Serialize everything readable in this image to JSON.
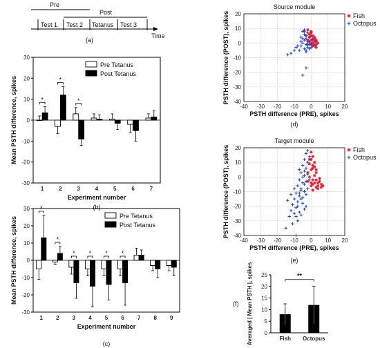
{
  "timeline": {
    "pre_label": "Pre",
    "post_label": "Post",
    "segments": [
      "Test 1",
      "Test 2",
      "Tetanus",
      "Test 3"
    ],
    "time_label": "Time",
    "caption": "(a)"
  },
  "chart_data": [
    {
      "id": "b",
      "type": "bar",
      "caption": "(b)",
      "xlabel": "Experiment number",
      "ylabel": "Mean PSTH difference, spikes",
      "ylim": [
        -30,
        30
      ],
      "yticks": [
        -30,
        -20,
        -10,
        0,
        10,
        20,
        30
      ],
      "categories": [
        "1",
        "2",
        "3",
        "4",
        "5",
        "6",
        "7"
      ],
      "series": [
        {
          "name": "Pre Tetanus",
          "color": "#ffffff",
          "values": [
            0,
            -3,
            3,
            1,
            0.5,
            -2,
            1
          ],
          "errors": [
            2,
            3.5,
            3,
            2,
            2.5,
            4,
            2
          ]
        },
        {
          "name": "Post Tetanus",
          "color": "#000000",
          "values": [
            3.5,
            12,
            -9,
            0.5,
            -1.5,
            -5,
            1.5
          ],
          "errors": [
            3,
            4,
            3,
            2,
            3,
            5,
            3
          ]
        }
      ],
      "significant": [
        "1",
        "2",
        "3"
      ],
      "legend": "top-right"
    },
    {
      "id": "c",
      "type": "bar",
      "caption": "(c)",
      "xlabel": "Experiment number",
      "ylabel": "Mean PSTH difference, spikes",
      "ylim": [
        -30,
        30
      ],
      "yticks": [
        -30,
        -20,
        -10,
        0,
        10,
        20,
        30
      ],
      "categories": [
        "1",
        "2",
        "3",
        "4",
        "5",
        "6",
        "7",
        "8",
        "9"
      ],
      "series": [
        {
          "name": "Pre Tetanus",
          "color": "#ffffff",
          "values": [
            -5,
            -1,
            -4,
            -5,
            -5,
            -5,
            3,
            -3,
            -3
          ],
          "errors": [
            6,
            1.5,
            4,
            4,
            4,
            4,
            4,
            3,
            3
          ]
        },
        {
          "name": "Post Tetanus",
          "color": "#000000",
          "values": [
            13,
            4,
            -13,
            -15,
            -14,
            -13,
            3,
            -5,
            -4
          ],
          "errors": [
            13,
            4,
            9,
            12,
            9,
            13,
            3,
            5,
            5
          ]
        }
      ],
      "significant": [
        "1",
        "2",
        "3",
        "4",
        "5",
        "6"
      ],
      "legend": "top-right"
    },
    {
      "id": "d",
      "type": "scatter",
      "title": "Source module",
      "caption": "(d)",
      "xlabel": "PSTH difference (PRE), spikes",
      "ylabel": "PSTH difference (POST), spikes",
      "xlim": [
        -40,
        20
      ],
      "ylim": [
        -40,
        20
      ],
      "ticks": [
        -40,
        -30,
        -20,
        -10,
        0,
        10,
        20
      ],
      "grid": true,
      "legend": "top-right",
      "series": [
        {
          "name": "Fish",
          "color": "#e8192c",
          "marker": "star",
          "points": [
            [
              -2,
              9
            ],
            [
              0,
              7
            ],
            [
              1,
              5
            ],
            [
              2,
              3
            ],
            [
              3,
              1
            ],
            [
              -1,
              4
            ],
            [
              0,
              2
            ],
            [
              1,
              0
            ],
            [
              2,
              -1
            ],
            [
              -1,
              6
            ],
            [
              0,
              5
            ],
            [
              3,
              -1
            ],
            [
              2,
              1
            ],
            [
              -2,
              2
            ],
            [
              1,
              3
            ],
            [
              3,
              2
            ],
            [
              0,
              -1
            ],
            [
              -3,
              5
            ],
            [
              2,
              4
            ],
            [
              -1,
              1
            ],
            [
              4,
              0
            ],
            [
              1,
              -2
            ],
            [
              3,
              -3
            ],
            [
              0,
              8
            ],
            [
              -4,
              8
            ]
          ]
        },
        {
          "name": "Octopus",
          "color": "#1f3fbf",
          "marker": "plus",
          "points": [
            [
              -5,
              8
            ],
            [
              -4,
              6
            ],
            [
              -3,
              5
            ],
            [
              -4,
              2
            ],
            [
              -5,
              0
            ],
            [
              -6,
              -2
            ],
            [
              -3,
              -1
            ],
            [
              -2,
              -3
            ],
            [
              -8,
              -2
            ],
            [
              -10,
              -5
            ],
            [
              -12,
              -7
            ],
            [
              -14,
              -8
            ],
            [
              -3,
              -17
            ],
            [
              -5,
              -22
            ],
            [
              -1,
              -1
            ],
            [
              -2,
              1
            ],
            [
              -3,
              3
            ],
            [
              -6,
              4
            ],
            [
              -1,
              4
            ],
            [
              -2,
              -2
            ],
            [
              -4,
              -4
            ],
            [
              -7,
              -5
            ],
            [
              -9,
              -3
            ],
            [
              -6,
              1
            ],
            [
              -3,
              -6
            ],
            [
              0,
              -3
            ],
            [
              -2,
              7
            ],
            [
              -4,
              9
            ],
            [
              1,
              2
            ],
            [
              2,
              -2
            ],
            [
              0,
              0
            ],
            [
              -1,
              -4
            ],
            [
              -5,
              3
            ],
            [
              -2,
              0
            ],
            [
              -3,
              -5
            ]
          ]
        }
      ]
    },
    {
      "id": "e",
      "type": "scatter",
      "title": "Target module",
      "caption": "(e)",
      "xlabel": "PSTH difference (PRE), spikes",
      "ylabel": "PSTH difference (POST), spikes",
      "xlim": [
        -40,
        20
      ],
      "ylim": [
        -40,
        20
      ],
      "ticks": [
        -40,
        -30,
        -20,
        -10,
        0,
        10,
        20
      ],
      "grid": true,
      "legend": "top-right",
      "series": [
        {
          "name": "Fish",
          "color": "#e8192c",
          "marker": "star",
          "points": [
            [
              0,
              17
            ],
            [
              1,
              14
            ],
            [
              -1,
              12
            ],
            [
              2,
              10
            ],
            [
              1,
              8
            ],
            [
              0,
              5
            ],
            [
              3,
              3
            ],
            [
              2,
              1
            ],
            [
              5,
              -3
            ],
            [
              4,
              -6
            ],
            [
              6,
              -5
            ],
            [
              1,
              -2
            ],
            [
              0,
              -4
            ],
            [
              3,
              -7
            ],
            [
              -2,
              3
            ],
            [
              -1,
              0
            ],
            [
              1,
              -5
            ],
            [
              4,
              -8
            ],
            [
              7,
              -6
            ],
            [
              2,
              -4
            ],
            [
              0,
              12
            ],
            [
              1,
              6
            ],
            [
              3,
              -2
            ],
            [
              5,
              -1
            ],
            [
              -1,
              9
            ],
            [
              2,
              7
            ],
            [
              4,
              -4
            ],
            [
              6,
              -7
            ],
            [
              1,
              -9
            ],
            [
              -2,
              -3
            ],
            [
              3,
              5
            ],
            [
              0,
              -6
            ]
          ]
        },
        {
          "name": "Octopus",
          "color": "#1f3fbf",
          "marker": "plus",
          "points": [
            [
              -2,
              18
            ],
            [
              -3,
              16
            ],
            [
              -4,
              12
            ],
            [
              -2,
              10
            ],
            [
              -5,
              8
            ],
            [
              -3,
              6
            ],
            [
              -6,
              3
            ],
            [
              -4,
              1
            ],
            [
              -7,
              -2
            ],
            [
              -5,
              -4
            ],
            [
              -8,
              -6
            ],
            [
              -6,
              -9
            ],
            [
              -9,
              -11
            ],
            [
              -7,
              -13
            ],
            [
              -10,
              -15
            ],
            [
              -8,
              -17
            ],
            [
              -11,
              -19
            ],
            [
              -9,
              -21
            ],
            [
              -12,
              -23
            ],
            [
              -10,
              -25
            ],
            [
              -13,
              -27
            ],
            [
              -8,
              -30
            ],
            [
              -11,
              -32
            ],
            [
              -15,
              -35
            ],
            [
              -9,
              -40
            ],
            [
              -4,
              -5
            ],
            [
              -6,
              -8
            ],
            [
              -7,
              -11
            ],
            [
              -5,
              -14
            ],
            [
              -3,
              -12
            ],
            [
              -2,
              -8
            ],
            [
              -4,
              -10
            ],
            [
              -6,
              -15
            ],
            [
              -8,
              -20
            ],
            [
              -5,
              -18
            ],
            [
              -3,
              -20
            ],
            [
              -7,
              -24
            ],
            [
              -9,
              -27
            ],
            [
              -4,
              -22
            ],
            [
              -6,
              -26
            ],
            [
              -10,
              -8
            ],
            [
              -12,
              -12
            ],
            [
              -14,
              -16
            ],
            [
              -2,
              2
            ],
            [
              -1,
              -2
            ],
            [
              -3,
              -3
            ],
            [
              -5,
              0
            ],
            [
              -7,
              5
            ],
            [
              -1,
              14
            ],
            [
              -4,
              4
            ]
          ]
        }
      ]
    },
    {
      "id": "f",
      "type": "bar",
      "caption": "(f)",
      "ylabel": "Averaged | Mean PSTH |, spikes",
      "ylim": [
        0,
        25
      ],
      "yticks": [
        0,
        5,
        10,
        15,
        20,
        25
      ],
      "categories": [
        "Fish",
        "Octopus"
      ],
      "values": [
        8,
        12
      ],
      "errors": [
        4.5,
        8
      ],
      "significance": "**"
    }
  ]
}
